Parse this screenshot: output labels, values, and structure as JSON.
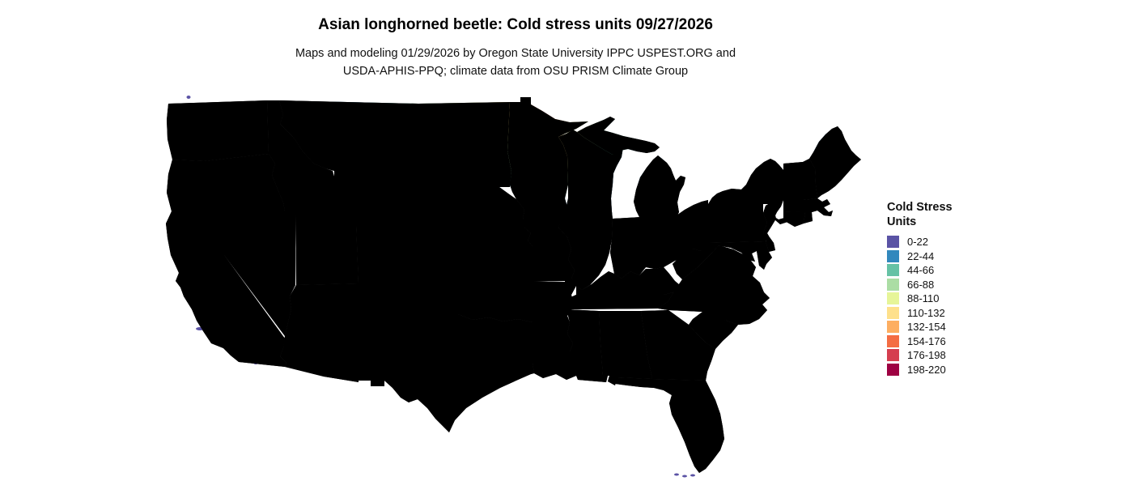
{
  "header": {
    "title": "Asian longhorned beetle: Cold stress units 09/27/2026",
    "subtitle_line1": "Maps and modeling 01/29/2026 by Oregon State University IPPC USPEST.ORG and",
    "subtitle_line2": "USDA-APHIS-PPQ; climate data from OSU PRISM Climate Group"
  },
  "legend": {
    "title_line1": "Cold Stress",
    "title_line2": "Units",
    "items": [
      {
        "label": "0-22",
        "color": "#5a53a5"
      },
      {
        "label": "22-44",
        "color": "#3288bd"
      },
      {
        "label": "44-66",
        "color": "#66c2a5"
      },
      {
        "label": "66-88",
        "color": "#abdda4"
      },
      {
        "label": "88-110",
        "color": "#e6f598"
      },
      {
        "label": "110-132",
        "color": "#fee08b"
      },
      {
        "label": "132-154",
        "color": "#fdae61"
      },
      {
        "label": "154-176",
        "color": "#f46d43"
      },
      {
        "label": "176-198",
        "color": "#d53e4f"
      },
      {
        "label": "198-220",
        "color": "#9e0142"
      }
    ]
  },
  "map": {
    "region_label": "Contiguous United States choropleth raster",
    "base_fill": "#5b53a5",
    "border_color": "#000000",
    "background": "#ffffff"
  }
}
